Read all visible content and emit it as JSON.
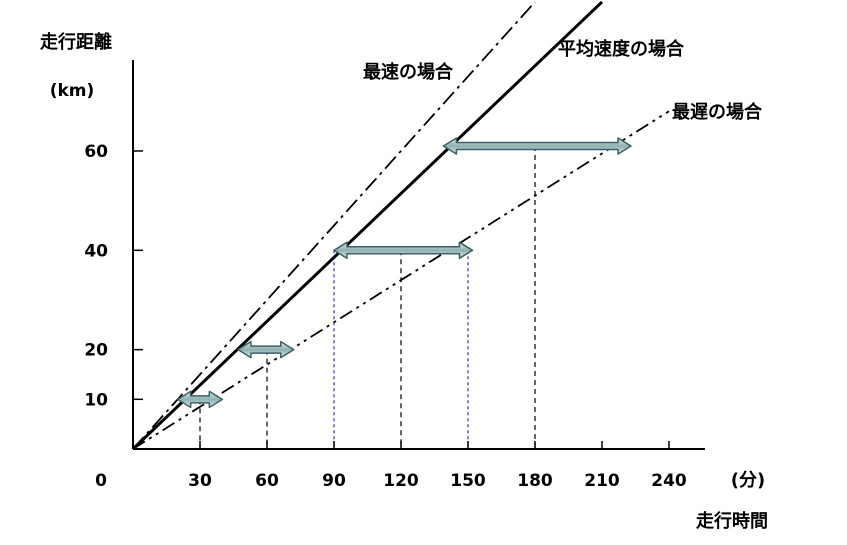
{
  "chart_data": {
    "type": "line",
    "ylabel": "走行距離",
    "yunit": "(km)",
    "xlabel": "走行時間",
    "xunit": "(分)",
    "origin_label": "0",
    "x_ticks": [
      30,
      60,
      90,
      120,
      150,
      180,
      210,
      240
    ],
    "y_ticks": [
      10,
      20,
      40,
      60
    ],
    "xlim": [
      0,
      240
    ],
    "ylim": [
      0,
      60
    ],
    "grid": false,
    "series": [
      {
        "name": "最速の場合",
        "style": "dash-dot",
        "x": [
          0,
          180
        ],
        "y": [
          0,
          90
        ]
      },
      {
        "name": "平均速度の場合",
        "style": "solid",
        "x": [
          0,
          210
        ],
        "y": [
          0,
          90
        ]
      },
      {
        "name": "最遅の場合",
        "style": "dash-dot-dot",
        "x": [
          0,
          240
        ],
        "y": [
          0,
          68
        ]
      }
    ],
    "ranges": [
      {
        "y": 10,
        "x_from": 20,
        "x_to": 40
      },
      {
        "y": 20,
        "x_from": 47,
        "x_to": 72
      },
      {
        "y": 40,
        "x_from": 90,
        "x_to": 152
      },
      {
        "y": 61,
        "x_from": 139,
        "x_to": 223
      }
    ],
    "dashed_guides": [
      {
        "x": 30,
        "y": 10
      },
      {
        "x": 60,
        "y": 20
      },
      {
        "x": 90,
        "y": 40
      },
      {
        "x": 120,
        "y": 40
      },
      {
        "x": 150,
        "y": 40
      },
      {
        "x": 180,
        "y": 61
      }
    ],
    "colors": {
      "line": "#000000",
      "arrow_fill": "#8fb0b0",
      "arrow_stroke": "#3f5f66",
      "guide_blue": "#3030c0"
    }
  }
}
